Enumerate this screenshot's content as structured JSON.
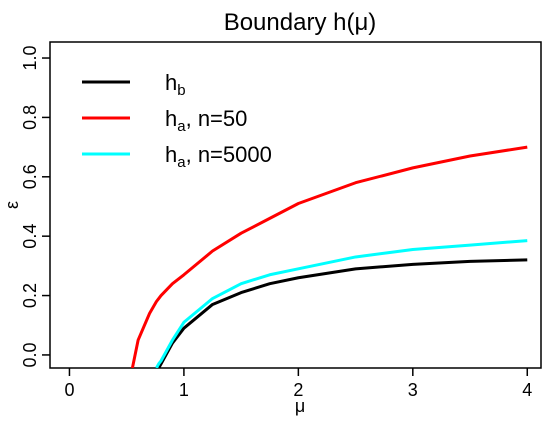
{
  "chart_data": {
    "type": "line",
    "title": "Boundary h(μ)",
    "x_label": "μ",
    "y_label": "ε",
    "x": [
      0.55,
      0.6,
      0.7,
      0.76,
      0.78,
      0.8,
      0.9,
      1,
      1.25,
      1.5,
      1.75,
      2,
      2.5,
      3,
      3.5,
      4
    ],
    "series": [
      {
        "name": "hb",
        "color": "#000000",
        "values": [
          null,
          null,
          null,
          null,
          -0.044,
          -0.03,
          0.04,
          0.09,
          0.17,
          0.21,
          0.24,
          0.26,
          0.29,
          0.305,
          0.315,
          0.32
        ]
      },
      {
        "name": "ha, n=50",
        "color": "#ff0000",
        "values": [
          -0.044,
          0.05,
          0.14,
          0.18,
          0.19,
          0.2,
          0.24,
          0.27,
          0.35,
          0.41,
          0.46,
          0.51,
          0.58,
          0.63,
          0.67,
          0.7
        ]
      },
      {
        "name": "ha, n=5000",
        "color": "#00ffff",
        "values": [
          null,
          null,
          null,
          -0.044,
          -0.03,
          -0.02,
          0.05,
          0.11,
          0.19,
          0.24,
          0.27,
          0.29,
          0.33,
          0.355,
          0.37,
          0.385
        ]
      }
    ],
    "xlim": [
      -0.17,
      4.12
    ],
    "ylim": [
      -0.044,
      1.054
    ],
    "xticks": [
      0,
      1,
      2,
      3,
      4
    ],
    "yticks": [
      {
        "value": 0,
        "label": "0.0"
      },
      0.2,
      0.4,
      0.6,
      0.8,
      {
        "value": 1,
        "label": "1.0"
      }
    ],
    "legend": "top-left"
  }
}
